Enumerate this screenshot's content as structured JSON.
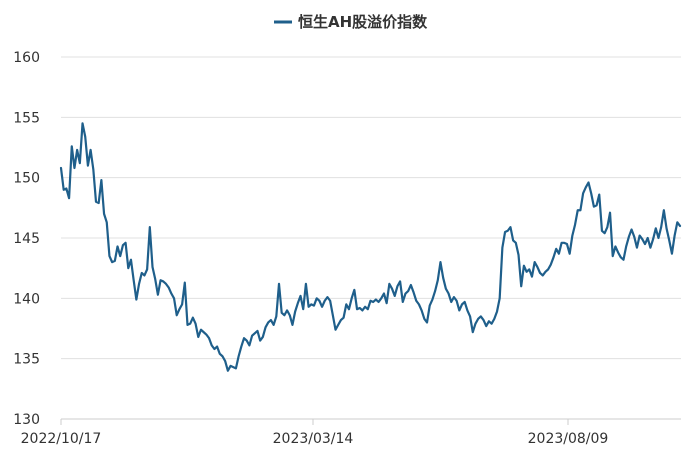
{
  "legend": {
    "label": "恒生AH股溢价指数"
  },
  "colors": {
    "series": "#1f5f8b",
    "grid": "#e0e0e0",
    "axis": "#cccccc",
    "text": "#333333"
  },
  "chart_data": {
    "type": "line",
    "title": "",
    "xlabel": "",
    "ylabel": "",
    "legend_position": "top-center",
    "grid": true,
    "ylim": [
      130,
      160
    ],
    "yticks": [
      130,
      135,
      140,
      145,
      150,
      155,
      160
    ],
    "xticks": [
      "2022/10/17",
      "2023/03/14",
      "2023/08/09"
    ],
    "series": [
      {
        "name": "恒生AH股溢价指数",
        "values": [
          150.8,
          149.0,
          149.1,
          148.3,
          152.6,
          150.8,
          152.3,
          151.2,
          154.5,
          153.4,
          151.0,
          152.3,
          150.7,
          148.0,
          147.9,
          149.8,
          147.0,
          146.3,
          143.5,
          143.0,
          143.1,
          144.3,
          143.5,
          144.4,
          144.6,
          142.5,
          143.2,
          141.5,
          139.9,
          141.2,
          142.1,
          141.9,
          142.4,
          145.9,
          142.6,
          141.6,
          140.3,
          141.5,
          141.4,
          141.2,
          140.9,
          140.4,
          140.0,
          138.6,
          139.1,
          139.5,
          141.3,
          137.8,
          137.9,
          138.4,
          137.9,
          136.8,
          137.4,
          137.2,
          137.0,
          136.7,
          136.1,
          135.8,
          136.0,
          135.4,
          135.2,
          134.8,
          134.0,
          134.4,
          134.3,
          134.2,
          135.2,
          136.0,
          136.7,
          136.5,
          136.1,
          136.9,
          137.1,
          137.3,
          136.5,
          136.8,
          137.6,
          138.0,
          138.2,
          137.8,
          138.5,
          141.2,
          138.8,
          138.6,
          139.0,
          138.6,
          137.8,
          138.9,
          139.6,
          140.2,
          139.1,
          141.2,
          139.3,
          139.5,
          139.4,
          140.0,
          139.8,
          139.3,
          139.8,
          140.1,
          139.8,
          138.6,
          137.4,
          137.8,
          138.2,
          138.4,
          139.5,
          139.1,
          140.0,
          140.7,
          139.1,
          139.2,
          139.0,
          139.3,
          139.1,
          139.8,
          139.7,
          139.9,
          139.7,
          140.0,
          140.4,
          139.6,
          141.2,
          140.8,
          140.2,
          141.0,
          141.4,
          139.7,
          140.4,
          140.6,
          141.1,
          140.5,
          139.8,
          139.5,
          139.0,
          138.3,
          138.0,
          139.4,
          139.9,
          140.6,
          141.5,
          143.0,
          141.7,
          140.8,
          140.4,
          139.7,
          140.1,
          139.8,
          139.0,
          139.5,
          139.7,
          139.0,
          138.5,
          137.2,
          137.9,
          138.3,
          138.5,
          138.2,
          137.7,
          138.1,
          137.9,
          138.3,
          138.9,
          140.0,
          144.2,
          145.5,
          145.6,
          145.9,
          144.8,
          144.6,
          143.6,
          141.0,
          142.7,
          142.2,
          142.4,
          141.8,
          143.0,
          142.6,
          142.1,
          141.9,
          142.2,
          142.4,
          142.8,
          143.4,
          144.1,
          143.7,
          144.6,
          144.6,
          144.5,
          143.7,
          145.2,
          146.1,
          147.3,
          147.3,
          148.7,
          149.2,
          149.6,
          148.7,
          147.6,
          147.7,
          148.6,
          145.6,
          145.4,
          145.9,
          147.1,
          143.5,
          144.3,
          143.8,
          143.4,
          143.2,
          144.3,
          145.1,
          145.7,
          145.1,
          144.2,
          145.2,
          144.9,
          144.5,
          145.0,
          144.2,
          144.9,
          145.8,
          145.0,
          145.9,
          147.3,
          145.8,
          144.8,
          143.7,
          145.2,
          146.3,
          146.0
        ]
      }
    ]
  }
}
